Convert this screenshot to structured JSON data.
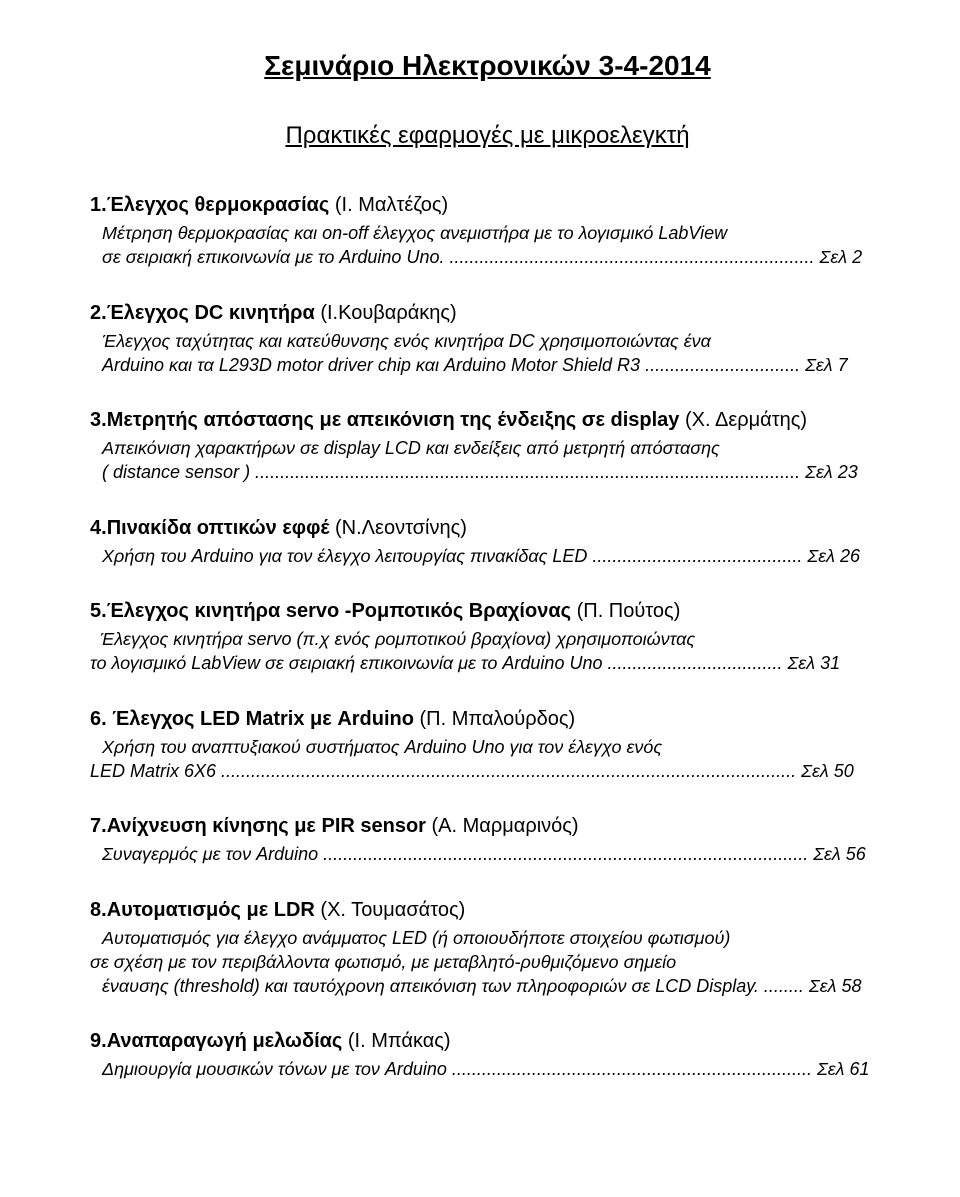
{
  "title": "Σεμινάριο Ηλεκτρονικών 3-4-2014",
  "subtitle": "Πρακτικές εφαρμογές με μικροελεγκτή",
  "entries": [
    {
      "num": "1.",
      "name": "Έλεγχος θερμοκρασίας",
      "author": " (Ι. Μαλτέζος)",
      "lines": [
        {
          "text": "Μέτρηση θερμοκρασίας και on-off έλεγχος ανεμιστήρα με το λογισμικό LabView",
          "indent": "indent1"
        },
        {
          "text": "σε σειριακή επικοινωνία με το Arduino Uno. ......................................................................... Σελ 2",
          "indent": "indent1"
        }
      ]
    },
    {
      "num": "2.",
      "name": "Έλεγχος DC κινητήρα",
      "author": " (Ι.Κουβαράκης)",
      "lines": [
        {
          "text": "Έλεγχος ταχύτητας και κατεύθυνσης ενός κινητήρα DC χρησιμοποιώντας ένα",
          "indent": "indent1"
        },
        {
          "text": "Arduino και τα L293D motor driver chip και Arduino Motor Shield R3 ............................... Σελ 7",
          "indent": "indent1"
        }
      ]
    },
    {
      "num": "3.",
      "name": "Μετρητής απόστασης με απεικόνιση της ένδειξης σε display",
      "author": " (Χ. Δερμάτης)",
      "lines": [
        {
          "text": "Απεικόνιση  χαρακτήρων σε display LCD  και ενδείξεις από μετρητή απόστασης",
          "indent": "indent1"
        },
        {
          "text": "( distance sensor  ) .............................................................................................................  Σελ 23",
          "indent": "indent1"
        }
      ]
    },
    {
      "num": "4.",
      "name": "Πινακίδα οπτικών εφφέ",
      "author": " (Ν.Λεοντσίνης)",
      "lines": [
        {
          "text": "Χρήση του Arduino για τον έλεγχο λειτουργίας πινακίδας  LED .......................................... Σελ 26",
          "indent": "indent1"
        }
      ]
    },
    {
      "num": "5.",
      "name": "Έλεγχος κινητήρα servo -Ρομποτικός Βραχίονας",
      "author": " (Π. Πούτος)",
      "lines": [
        {
          "text": "Έλεγχος κινητήρα servo (π.χ ενός ρομποτικού βραχίονα) χρησιμοποιώντας",
          "indent": "indent2"
        },
        {
          "text": "το λογισμικό LabView σε σειριακή επικοινωνία με το Arduino Uno ...................................  Σελ 31",
          "indent": ""
        }
      ]
    },
    {
      "num": "6. ",
      "name": "Έλεγχος LED Matrix με Arduino",
      "author": " (Π. Μπαλούρδος)",
      "lines": [
        {
          "text": "Χρήση του αναπτυξιακού συστήματος Arduino Uno για τον έλεγχο ενός",
          "indent": "indent1"
        },
        {
          "text": " LED Matrix 6X6 ................................................................................................................... Σελ 50",
          "indent": ""
        }
      ]
    },
    {
      "num": "7.",
      "name": "Ανίχνευση κίνησης με PIR sensor",
      "author": " (Α. Μαρμαρινός)",
      "lines": [
        {
          "text": "Συναγερμός με τον Arduino ................................................................................................. Σελ 56",
          "indent": "indent1"
        }
      ]
    },
    {
      "num": "8.",
      "name": "Αυτοματισμός με LDR",
      "author": " (Χ. Τουμασάτος)",
      "lines": [
        {
          "text": "Αυτοματισμός για έλεγχο ανάμματος LED (ή οποιουδήποτε στοιχείου φωτισμού)",
          "indent": "indent1"
        },
        {
          "text": " σε σχέση με τον περιβάλλοντα φωτισμό, με μεταβλητό-ρυθμιζόμενο σημείο",
          "indent": ""
        },
        {
          "text": "έναυσης (threshold) και ταυτόχρονη απεικόνιση των πληροφοριών σε LCD Display. ........ Σελ 58",
          "indent": "indent1"
        }
      ]
    },
    {
      "num": "9.",
      "name": "Αναπαραγωγή μελωδίας",
      "author": " (Ι. Μπάκας)",
      "lines": [
        {
          "text": "Δημιουργία μουσικών τόνων με τον Arduino ........................................................................ Σελ 61",
          "indent": "indent1"
        }
      ]
    }
  ]
}
